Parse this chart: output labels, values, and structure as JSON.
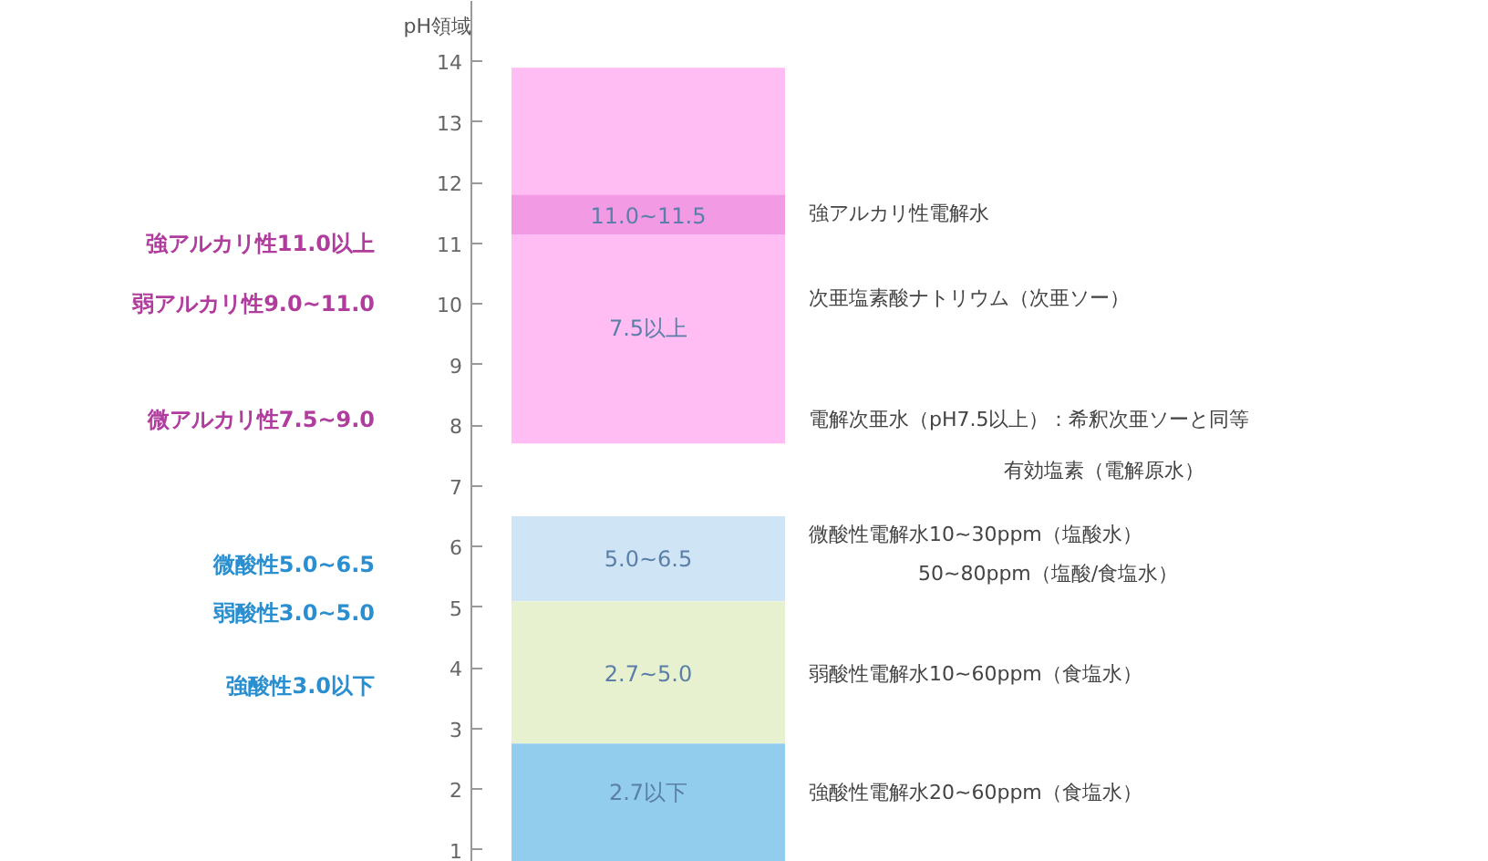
{
  "chart_data": {
    "type": "bar",
    "ylabel": "pH領域",
    "categories": [
      null
    ],
    "ylim": [
      0.8,
      15.0
    ],
    "yticks": [
      1,
      2,
      3,
      4,
      5,
      6,
      7,
      8,
      9,
      10,
      11,
      12,
      13,
      14
    ],
    "series": [
      {
        "color": "#ffbdf3",
        "base": [
          7.7
        ],
        "values": [
          6.2
        ]
      },
      {
        "color": "#f29ae3",
        "base": [
          11.15
        ],
        "values": [
          0.65
        ]
      },
      {
        "color": "#cfe5f5",
        "base": [
          5.1
        ],
        "values": [
          1.4
        ]
      },
      {
        "color": "#e8f1cf",
        "base": [
          2.75
        ],
        "values": [
          2.35
        ]
      },
      {
        "color": "#93cdee",
        "base": [
          0.8
        ],
        "values": [
          1.95
        ]
      }
    ],
    "annotations": [
      "7.5以上",
      "11.0~11.5",
      "5.0~6.5",
      "2.7~5.0",
      "2.7以下",
      "強アルカリ性11.0以上",
      "弱アルカリ性9.0~11.0",
      "微アルカリ性7.5~9.0",
      "微酸性5.0~6.5",
      "弱酸性3.0~5.0",
      "強酸性3.0以下",
      "強アルカリ性電解水",
      "次亜塩素酸ナトリウム（次亜ソー）",
      "電解次亜水（pH7.5以上）：希釈次亜ソーと同等",
      "有効塩素（電解原水）",
      "微酸性電解水10~30ppm（塩酸水）",
      "50~80ppm（塩酸/食塩水）",
      "弱酸性電解水10~60ppm（食塩水）",
      "強酸性電解水20~60ppm（食塩水）"
    ]
  }
}
